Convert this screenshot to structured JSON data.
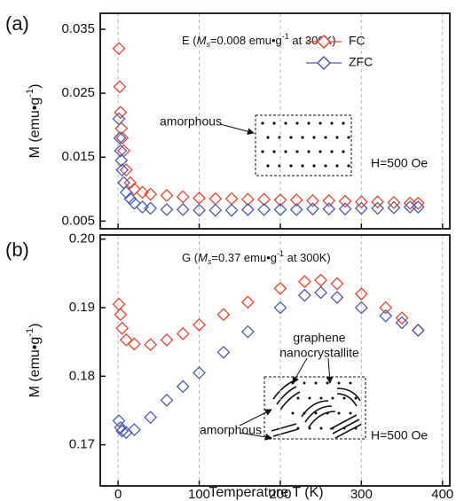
{
  "chart_data": [
    {
      "type": "scatter",
      "panel_label": "(a)",
      "annotation": {
        "prefix": "E (",
        "symbol": "M",
        "subscript": "s",
        "middle": "=0.008 emu•g",
        "superscript": "-1",
        "suffix": " at 300K)"
      },
      "inset_label": "amorphous",
      "field_label": "H=500 Oe",
      "ylabel": {
        "text": "M (emu•g",
        "superscript": "-1",
        "suffix": ")"
      },
      "x": [
        1,
        2,
        3,
        4,
        5,
        7,
        10,
        15,
        20,
        30,
        40,
        60,
        80,
        100,
        120,
        140,
        160,
        180,
        200,
        220,
        240,
        260,
        280,
        300,
        320,
        340,
        360,
        370
      ],
      "series": [
        {
          "name": "FC",
          "color": "#e8432c",
          "values": [
            0.032,
            0.026,
            0.022,
            0.0195,
            0.018,
            0.016,
            0.013,
            0.011,
            0.01,
            0.0095,
            0.0092,
            0.009,
            0.0088,
            0.0086,
            0.0085,
            0.0085,
            0.0084,
            0.0084,
            0.0083,
            0.0083,
            0.0082,
            0.0082,
            0.0081,
            0.008,
            0.008,
            0.0079,
            0.0078,
            0.0078
          ]
        },
        {
          "name": "ZFC",
          "color": "#4a5cb0",
          "values": [
            0.021,
            0.018,
            0.016,
            0.0145,
            0.013,
            0.011,
            0.0095,
            0.0085,
            0.0078,
            0.0072,
            0.007,
            0.0068,
            0.0068,
            0.0067,
            0.0067,
            0.0067,
            0.0068,
            0.0068,
            0.0068,
            0.0068,
            0.0069,
            0.0069,
            0.0069,
            0.007,
            0.007,
            0.0071,
            0.0072,
            0.0072
          ]
        }
      ],
      "xlim": [
        -22,
        409
      ],
      "xticks": [
        0,
        100,
        200,
        300,
        400
      ],
      "show_xtick_labels": false,
      "ylim": [
        0.0038,
        0.0375
      ],
      "yticks": [
        0.005,
        0.015,
        0.025,
        0.035
      ],
      "grid": "x",
      "legend": "upper right"
    },
    {
      "type": "scatter",
      "panel_label": "(b)",
      "annotation": {
        "prefix": "G (",
        "symbol": "M",
        "subscript": "s",
        "middle": "=0.37 emu•g",
        "superscript": "-1",
        "suffix": " at 300K)"
      },
      "inset_label": "amorphous",
      "inset_label_2": [
        "graphene",
        "nanocrystallite"
      ],
      "field_label": "H=500 Oe",
      "ylabel": {
        "text": "M (emu•g",
        "superscript": "-1",
        "suffix": ")"
      },
      "xlabel": "Temperature T (K)",
      "x": [
        1,
        3,
        5,
        10,
        20,
        40,
        60,
        80,
        100,
        130,
        160,
        200,
        230,
        250,
        270,
        300,
        330,
        350,
        370
      ],
      "series": [
        {
          "color": "#e8432c",
          "values": [
            0.1905,
            0.189,
            0.187,
            0.1853,
            0.1847,
            0.1846,
            0.1853,
            0.1862,
            0.1875,
            0.189,
            0.1908,
            0.1928,
            0.1938,
            0.194,
            0.1935,
            0.192,
            0.19,
            0.1885,
            0.1867
          ]
        },
        {
          "color": "#4a5cb0",
          "values": [
            0.1735,
            0.1725,
            0.172,
            0.1718,
            0.1722,
            0.174,
            0.1765,
            0.1785,
            0.1805,
            0.1835,
            0.1865,
            0.19,
            0.1918,
            0.1922,
            0.1915,
            0.19,
            0.1888,
            0.1878,
            0.1867
          ]
        }
      ],
      "xlim": [
        -22,
        409
      ],
      "xticks": [
        0,
        100,
        200,
        300,
        400
      ],
      "show_xtick_labels": true,
      "ylim": [
        0.164,
        0.2006
      ],
      "yticks": [
        {
          "value": 0.2,
          "label": "0.20"
        },
        0.19,
        0.18,
        0.17
      ],
      "grid": "x"
    }
  ]
}
